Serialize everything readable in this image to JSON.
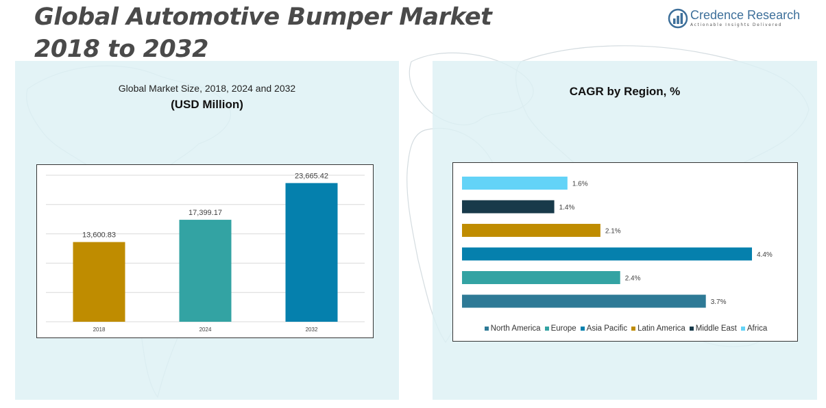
{
  "header": {
    "title_line1": "Global Automotive Bumper Market",
    "title_line2": "2018 to 2032"
  },
  "logo": {
    "name": "Credence Research",
    "tagline": "Actionable Insights Delivered",
    "icon": "bar-chart-logo-icon"
  },
  "colors": {
    "north_america": "#2e7a96",
    "europe": "#33a3a3",
    "asia_pacific": "#0580ad",
    "latin_america": "#bf8c00",
    "middle_east": "#183a4a",
    "africa": "#63d3f7",
    "panel_bg": "#ddf0f4"
  },
  "chart_data": [
    {
      "type": "bar",
      "title": "Global Market Size, 2018, 2024 and 2032",
      "subtitle": "(USD Million)",
      "categories": [
        "2018",
        "2024",
        "2032"
      ],
      "values": [
        13600.83,
        17399.17,
        23665.42
      ],
      "value_labels": [
        "13,600.83",
        "17,399.17",
        "23,665.42"
      ],
      "bar_colors": [
        "#bf8c00",
        "#33a3a3",
        "#0580ad"
      ],
      "ylim": [
        0,
        25000
      ],
      "grid": true
    },
    {
      "type": "bar",
      "orientation": "horizontal",
      "title": "CAGR by Region, %",
      "categories": [
        "North America",
        "Europe",
        "Asia Pacific",
        "Latin America",
        "Middle East",
        "Africa"
      ],
      "values": [
        3.7,
        2.4,
        4.4,
        2.1,
        1.4,
        1.6
      ],
      "value_labels": [
        "3.7%",
        "2.4%",
        "4.4%",
        "2.1%",
        "1.4%",
        "1.6%"
      ],
      "bar_colors": [
        "#2e7a96",
        "#33a3a3",
        "#0580ad",
        "#bf8c00",
        "#183a4a",
        "#63d3f7"
      ],
      "xlim": [
        0,
        4.4
      ],
      "legend_position": "bottom"
    }
  ]
}
